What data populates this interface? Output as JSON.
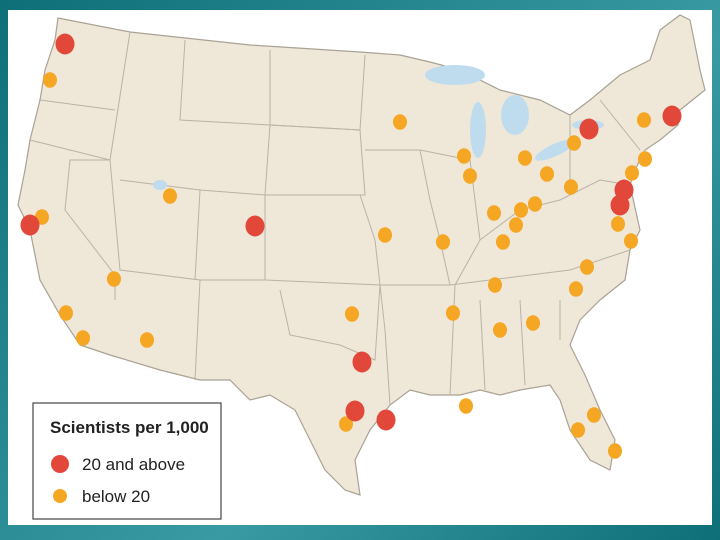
{
  "legend": {
    "title": "Scientists per 1,000",
    "items": [
      {
        "label": "20 and above",
        "color": "#e2483a"
      },
      {
        "label": "below 20",
        "color": "#f5a623"
      }
    ]
  }
}
